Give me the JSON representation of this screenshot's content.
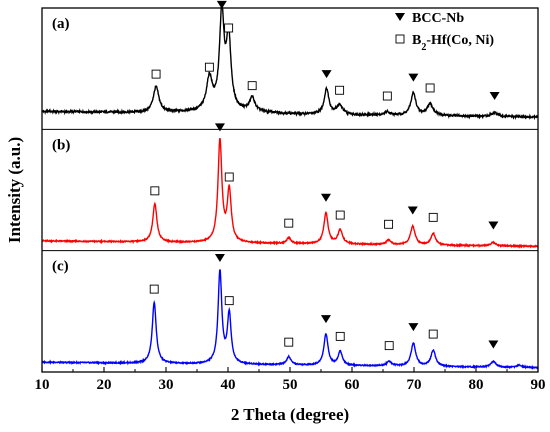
{
  "chart_data": {
    "type": "line",
    "title": "",
    "xlabel": "2 Theta (degree)",
    "ylabel": "Intensity (a.u.)",
    "xlim": [
      10,
      90
    ],
    "x_ticks": [
      10,
      20,
      30,
      40,
      50,
      60,
      70,
      80,
      90
    ],
    "y_ticks_shown": false,
    "grid": false,
    "legend_placement": "top-right",
    "legend": [
      {
        "symbol": "filled-triangle-down",
        "label": "BCC-Nb",
        "label_main": "BCC-Nb",
        "label_sub": "",
        "label_tail": ""
      },
      {
        "symbol": "open-square",
        "label": "B2-Hf(Co, Ni)",
        "label_main": "B",
        "label_sub": "2",
        "label_tail": "-Hf(Co, Ni)"
      }
    ],
    "panels": [
      {
        "label": "(a)",
        "color": "#000000",
        "baseline": 0.12,
        "peaks": [
          {
            "x": 28.4,
            "height": 0.22,
            "width": 0.55,
            "marker": "open-square"
          },
          {
            "x": 37.0,
            "height": 0.28,
            "width": 0.55,
            "marker": "open-square"
          },
          {
            "x": 39.0,
            "height": 0.82,
            "width": 0.45,
            "marker": "filled-triangle-down"
          },
          {
            "x": 40.1,
            "height": 0.62,
            "width": 0.45,
            "marker": "open-square"
          },
          {
            "x": 43.9,
            "height": 0.12,
            "width": 0.5,
            "marker": "open-square"
          },
          {
            "x": 55.9,
            "height": 0.22,
            "width": 0.45,
            "marker": "filled-triangle-down"
          },
          {
            "x": 58.0,
            "height": 0.08,
            "width": 0.6,
            "marker": "open-square"
          },
          {
            "x": 65.7,
            "height": 0.03,
            "width": 0.5,
            "marker": "open-square"
          },
          {
            "x": 69.9,
            "height": 0.19,
            "width": 0.5,
            "marker": "filled-triangle-down"
          },
          {
            "x": 72.6,
            "height": 0.1,
            "width": 0.6,
            "marker": "open-square"
          },
          {
            "x": 83.0,
            "height": 0.03,
            "width": 0.6,
            "marker": "filled-triangle-down"
          }
        ]
      },
      {
        "label": "(b)",
        "color": "#ff0000",
        "baseline": 0.05,
        "peaks": [
          {
            "x": 28.2,
            "height": 0.33,
            "width": 0.4,
            "marker": "open-square"
          },
          {
            "x": 38.7,
            "height": 0.88,
            "width": 0.38,
            "marker": "filled-triangle-down"
          },
          {
            "x": 40.2,
            "height": 0.45,
            "width": 0.38,
            "marker": "open-square"
          },
          {
            "x": 49.8,
            "height": 0.05,
            "width": 0.4,
            "marker": "open-square"
          },
          {
            "x": 55.8,
            "height": 0.27,
            "width": 0.4,
            "marker": "filled-triangle-down"
          },
          {
            "x": 58.1,
            "height": 0.12,
            "width": 0.45,
            "marker": "open-square"
          },
          {
            "x": 65.9,
            "height": 0.04,
            "width": 0.45,
            "marker": "open-square"
          },
          {
            "x": 69.8,
            "height": 0.16,
            "width": 0.45,
            "marker": "filled-triangle-down"
          },
          {
            "x": 73.1,
            "height": 0.1,
            "width": 0.45,
            "marker": "open-square"
          },
          {
            "x": 82.8,
            "height": 0.03,
            "width": 0.5,
            "marker": "filled-triangle-down"
          }
        ]
      },
      {
        "label": "(c)",
        "color": "#0000ff",
        "baseline": 0.05,
        "peaks": [
          {
            "x": 28.1,
            "height": 0.53,
            "width": 0.38,
            "marker": "open-square"
          },
          {
            "x": 38.7,
            "height": 0.8,
            "width": 0.36,
            "marker": "filled-triangle-down"
          },
          {
            "x": 40.2,
            "height": 0.43,
            "width": 0.36,
            "marker": "open-square"
          },
          {
            "x": 49.8,
            "height": 0.07,
            "width": 0.4,
            "marker": "open-square"
          },
          {
            "x": 55.8,
            "height": 0.27,
            "width": 0.4,
            "marker": "filled-triangle-down"
          },
          {
            "x": 58.1,
            "height": 0.12,
            "width": 0.4,
            "marker": "open-square"
          },
          {
            "x": 66.0,
            "height": 0.04,
            "width": 0.45,
            "marker": "open-square"
          },
          {
            "x": 69.9,
            "height": 0.2,
            "width": 0.45,
            "marker": "filled-triangle-down"
          },
          {
            "x": 73.1,
            "height": 0.14,
            "width": 0.45,
            "marker": "open-square"
          },
          {
            "x": 82.8,
            "height": 0.05,
            "width": 0.5,
            "marker": "filled-triangle-down"
          },
          {
            "x": 87.0,
            "height": 0.02,
            "width": 0.5,
            "marker": ""
          }
        ]
      }
    ]
  }
}
